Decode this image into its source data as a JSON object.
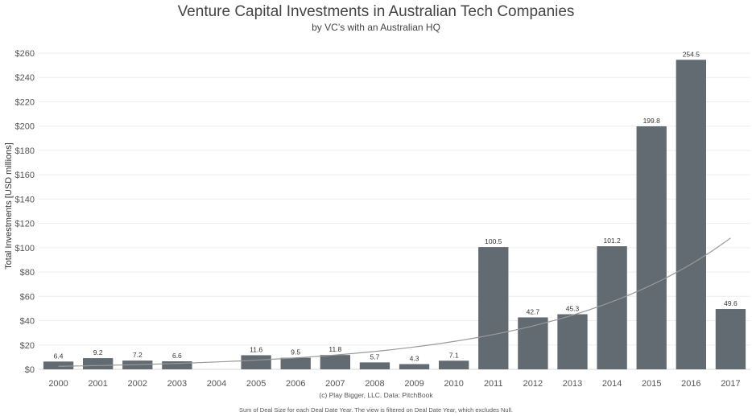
{
  "chart_data": {
    "type": "bar",
    "title": "Venture Capital Investments in Australian Tech Companies",
    "subtitle": "by VC’s with an Australian HQ",
    "ylabel": "Total Investments [USD millions]",
    "xlabel": "",
    "categories": [
      "2000",
      "2001",
      "2002",
      "2003",
      "2004",
      "2005",
      "2006",
      "2007",
      "2008",
      "2009",
      "2010",
      "2011",
      "2012",
      "2013",
      "2014",
      "2015",
      "2016",
      "2017"
    ],
    "values": [
      6.4,
      9.2,
      7.2,
      6.6,
      null,
      11.6,
      9.5,
      11.8,
      5.7,
      4.3,
      7.1,
      100.5,
      42.7,
      45.3,
      101.2,
      199.8,
      254.5,
      49.6
    ],
    "data_labels": [
      "6.4",
      "9.2",
      "7.2",
      "6.6",
      "",
      "11.6",
      "9.5",
      "11.8",
      "5.7",
      "4.3",
      "7.1",
      "100.5",
      "42.7",
      "45.3",
      "101.2",
      "199.8",
      "254.5",
      "49.6"
    ],
    "ylim": [
      0,
      260
    ],
    "yticks": [
      0,
      20,
      40,
      60,
      80,
      100,
      120,
      140,
      160,
      180,
      200,
      220,
      240,
      260
    ],
    "ytick_labels": [
      "$0",
      "$20",
      "$40",
      "$60",
      "$80",
      "$100",
      "$120",
      "$140",
      "$160",
      "$180",
      "$200",
      "$220",
      "$240",
      "$260"
    ],
    "trendline": {
      "type": "exponential",
      "start_value": 2.5,
      "end_value": 108
    },
    "grid": true,
    "bar_color": "#626a72",
    "trend_color": "#999999",
    "source": "(c) Play Bigger, LLC. Data: PitchBook",
    "caption": "Sum of Deal Size for each Deal Date Year. The view is filtered on Deal Date Year, which excludes Null."
  }
}
